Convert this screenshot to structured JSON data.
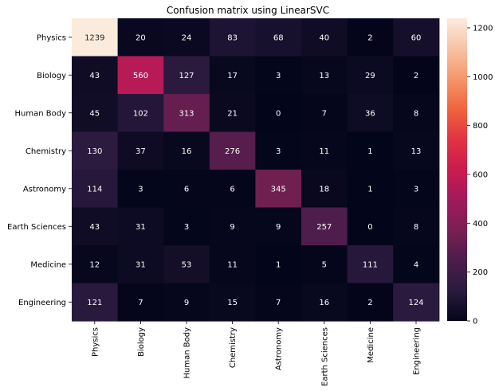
{
  "chart_data": {
    "type": "heatmap",
    "title": "Confusion matrix using LinearSVC",
    "xlabel": "",
    "ylabel": "",
    "row_labels": [
      "Physics",
      "Biology",
      "Human Body",
      "Chemistry",
      "Astronomy",
      "Earth Sciences",
      "Medicine",
      "Engineering"
    ],
    "col_labels": [
      "Physics",
      "Biology",
      "Human Body",
      "Chemistry",
      "Astronomy",
      "Earth Sciences",
      "Medicine",
      "Engineering"
    ],
    "values": [
      [
        1239,
        20,
        24,
        83,
        68,
        40,
        2,
        60
      ],
      [
        43,
        560,
        127,
        17,
        3,
        13,
        29,
        2
      ],
      [
        45,
        102,
        313,
        21,
        0,
        7,
        36,
        8
      ],
      [
        130,
        37,
        16,
        276,
        3,
        11,
        1,
        13
      ],
      [
        114,
        3,
        6,
        6,
        345,
        18,
        1,
        3
      ],
      [
        43,
        31,
        3,
        9,
        9,
        257,
        0,
        8
      ],
      [
        12,
        31,
        53,
        11,
        1,
        5,
        111,
        4
      ],
      [
        121,
        7,
        9,
        15,
        7,
        16,
        2,
        124
      ]
    ],
    "colorbar": {
      "min": 0,
      "max": 1239,
      "ticks": [
        0,
        200,
        400,
        600,
        800,
        1000,
        1200
      ],
      "colormap": "rocket",
      "colormap_stops": [
        "#03051a",
        "#2a1a3e",
        "#4c1d4b",
        "#7a1f53",
        "#a11a5b",
        "#cb1b4f",
        "#e13342",
        "#f0643d",
        "#f5966a",
        "#f8c2a5",
        "#faebdd"
      ]
    },
    "grid": false,
    "legend": "colorbar-right"
  }
}
